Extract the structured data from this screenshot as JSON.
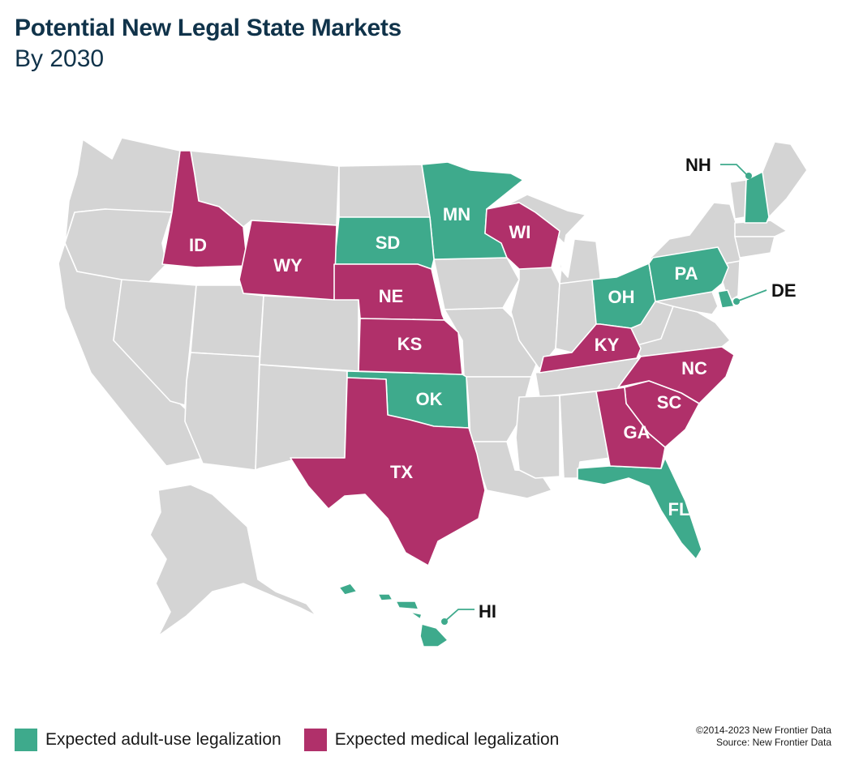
{
  "header": {
    "title": "Potential New Legal State Markets",
    "subtitle": "By 2030"
  },
  "colors": {
    "adult_use": "#3eaa8c",
    "medical": "#b0306a",
    "other": "#d4d4d4",
    "border": "#ffffff"
  },
  "states": {
    "adult_use": [
      "MN",
      "SD",
      "OH",
      "PA",
      "OK",
      "FL",
      "NH",
      "DE",
      "HI"
    ],
    "medical": [
      "ID",
      "WY",
      "WI",
      "NE",
      "KS",
      "KY",
      "NC",
      "SC",
      "GA",
      "TX"
    ]
  },
  "labels": {
    "id": "ID",
    "wy": "WY",
    "sd": "SD",
    "mn": "MN",
    "wi": "WI",
    "ne": "NE",
    "ks": "KS",
    "ok": "OK",
    "tx": "TX",
    "ky": "KY",
    "oh": "OH",
    "pa": "PA",
    "nc": "NC",
    "sc": "SC",
    "ga": "GA",
    "fl": "FL",
    "nh": "NH",
    "de": "DE",
    "hi": "HI"
  },
  "legend": {
    "adult_use": "Expected adult-use legalization",
    "medical": "Expected medical legalization"
  },
  "credits": {
    "copyright": "©2014-2023  New Frontier Data",
    "source": "Source: New Frontier Data"
  }
}
